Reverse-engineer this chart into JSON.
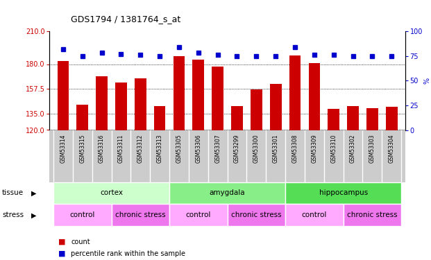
{
  "title": "GDS1794 / 1381764_s_at",
  "samples": [
    "GSM53314",
    "GSM53315",
    "GSM53316",
    "GSM53311",
    "GSM53312",
    "GSM53313",
    "GSM53305",
    "GSM53306",
    "GSM53307",
    "GSM53299",
    "GSM53300",
    "GSM53301",
    "GSM53308",
    "GSM53309",
    "GSM53310",
    "GSM53302",
    "GSM53303",
    "GSM53304"
  ],
  "counts": [
    183,
    143,
    169,
    163,
    167,
    142,
    187,
    184,
    178,
    142,
    157,
    162,
    188,
    181,
    139,
    142,
    140,
    141
  ],
  "percentiles": [
    82,
    75,
    78,
    77,
    76,
    75,
    84,
    78,
    76,
    75,
    75,
    75,
    84,
    76,
    76,
    75,
    75,
    75
  ],
  "ylim_left": [
    120,
    210
  ],
  "ylim_right": [
    0,
    100
  ],
  "yticks_left": [
    120,
    135,
    157.5,
    180,
    210
  ],
  "yticks_right": [
    0,
    25,
    50,
    75,
    100
  ],
  "bar_color": "#cc0000",
  "dot_color": "#0000cc",
  "tissue_groups": [
    {
      "label": "cortex",
      "start": 0,
      "end": 6,
      "color": "#ccffcc"
    },
    {
      "label": "amygdala",
      "start": 6,
      "end": 12,
      "color": "#88ee88"
    },
    {
      "label": "hippocampus",
      "start": 12,
      "end": 18,
      "color": "#55dd55"
    }
  ],
  "stress_groups": [
    {
      "label": "control",
      "start": 0,
      "end": 3,
      "color": "#ffaaff"
    },
    {
      "label": "chronic stress",
      "start": 3,
      "end": 6,
      "color": "#ee77ee"
    },
    {
      "label": "control",
      "start": 6,
      "end": 9,
      "color": "#ffaaff"
    },
    {
      "label": "chronic stress",
      "start": 9,
      "end": 12,
      "color": "#ee77ee"
    },
    {
      "label": "control",
      "start": 12,
      "end": 15,
      "color": "#ffaaff"
    },
    {
      "label": "chronic stress",
      "start": 15,
      "end": 18,
      "color": "#ee77ee"
    }
  ],
  "legend_count_color": "#cc0000",
  "legend_pct_color": "#0000cc",
  "sample_label_bg": "#cccccc",
  "n_samples": 18
}
